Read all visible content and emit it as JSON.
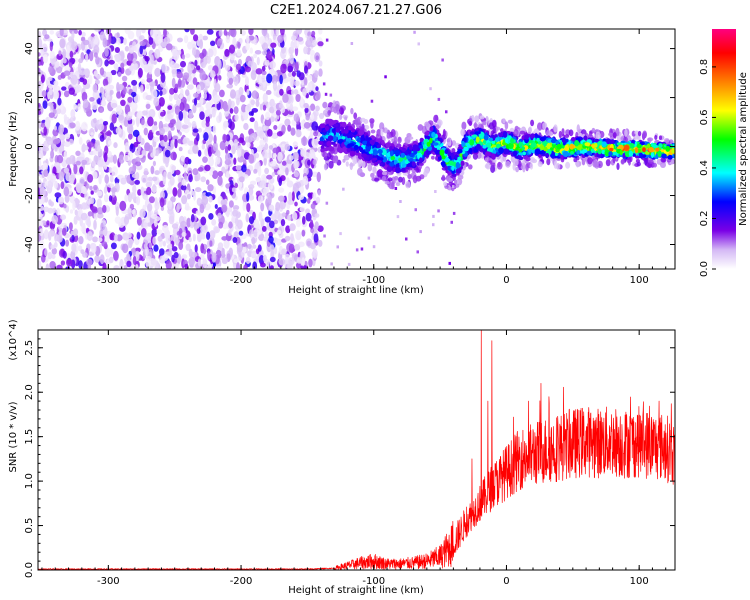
{
  "figure_title": "C2E1.2024.067.21.27.G06",
  "chart_data": [
    {
      "type": "heatmap",
      "title": "",
      "xlabel": "Height of straight line (km)",
      "ylabel": "Frequency (Hz)",
      "xlim": [
        -353,
        127
      ],
      "ylim": [
        -50,
        48
      ],
      "x_ticks": [
        -300,
        -200,
        -100,
        0,
        100
      ],
      "y_ticks": [
        -40,
        -20,
        0,
        20,
        40
      ],
      "colorbar": {
        "label": "Normalized spectral amplitude",
        "range": [
          0,
          0.95
        ],
        "ticks": [
          0.0,
          0.2,
          0.4,
          0.6,
          0.8
        ],
        "colors": [
          "#ffffff",
          "#7a00e6",
          "#0000ff",
          "#00ffff",
          "#00ff00",
          "#ffff00",
          "#ff8000",
          "#ff0000",
          "#ff0080"
        ]
      },
      "regions": [
        {
          "x_range": [
            -353,
            -140
          ],
          "content": "noise",
          "mean_amplitude": 0.1
        },
        {
          "x_range": [
            -140,
            127
          ],
          "content": "signal",
          "amplitude_start": 0.35,
          "amplitude_end": 0.9
        }
      ],
      "signal_track": [
        {
          "x": -150,
          "freq": 3
        },
        {
          "x": -130,
          "freq": 5
        },
        {
          "x": -110,
          "freq": 1
        },
        {
          "x": -95,
          "freq": -3
        },
        {
          "x": -80,
          "freq": -6
        },
        {
          "x": -65,
          "freq": -3
        },
        {
          "x": -55,
          "freq": 4
        },
        {
          "x": -45,
          "freq": -6
        },
        {
          "x": -38,
          "freq": -8
        },
        {
          "x": -30,
          "freq": 1
        },
        {
          "x": -20,
          "freq": 3
        },
        {
          "x": -10,
          "freq": 0
        },
        {
          "x": 0,
          "freq": 2
        },
        {
          "x": 10,
          "freq": -1
        },
        {
          "x": 20,
          "freq": 1
        },
        {
          "x": 40,
          "freq": -1
        },
        {
          "x": 60,
          "freq": 0
        },
        {
          "x": 80,
          "freq": -1
        },
        {
          "x": 100,
          "freq": -1
        },
        {
          "x": 127,
          "freq": -2
        }
      ]
    },
    {
      "type": "line",
      "title": "",
      "xlabel": "Height of straight line (km)",
      "ylabel": "SNR (10 * v/v)",
      "y_multiplier": "(x10^4)",
      "xlim": [
        -353,
        127
      ],
      "ylim": [
        0,
        2.7
      ],
      "x_ticks": [
        -300,
        -200,
        -100,
        0,
        100
      ],
      "y_ticks": [
        0.0,
        0.5,
        1.0,
        1.5,
        2.0,
        2.5
      ],
      "y_tick_labels": [
        "0.0",
        "0.5",
        "1.0",
        "1.5",
        "2.0",
        "2.5"
      ],
      "series": [
        {
          "color": "#ff0000",
          "x": [
            -353,
            -300,
            -250,
            -200,
            -150,
            -130,
            -110,
            -100,
            -90,
            -80,
            -70,
            -60,
            -50,
            -40,
            -30,
            -20,
            -10,
            0,
            10,
            20,
            30,
            40,
            50,
            60,
            70,
            80,
            90,
            100,
            110,
            120,
            127
          ],
          "y": [
            0.01,
            0.01,
            0.01,
            0.01,
            0.01,
            0.02,
            0.08,
            0.1,
            0.07,
            0.07,
            0.08,
            0.1,
            0.15,
            0.3,
            0.55,
            0.75,
            0.95,
            1.1,
            1.25,
            1.3,
            1.35,
            1.38,
            1.42,
            1.45,
            1.43,
            1.45,
            1.42,
            1.44,
            1.4,
            1.38,
            1.3
          ],
          "spikes": [
            {
              "x": -19,
              "y": 2.7
            },
            {
              "x": -11,
              "y": 2.58
            },
            {
              "x": -14,
              "y": 1.9
            },
            {
              "x": -26,
              "y": 1.25
            },
            {
              "x": 26,
              "y": 2.1
            },
            {
              "x": 32,
              "y": 1.95
            },
            {
              "x": 115,
              "y": 1.9
            }
          ]
        }
      ]
    }
  ]
}
